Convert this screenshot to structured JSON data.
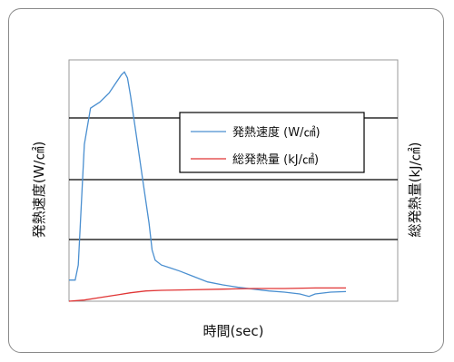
{
  "chart_data": {
    "type": "line",
    "xlabel": "時間(sec)",
    "ylabel_left": "発熱速度(W/㎠)",
    "ylabel_right": "総発熱量(kJ/㎠)",
    "legend_position": "top-right",
    "grid": "horizontal",
    "series": [
      {
        "name": "発熱速度 (W/㎠)",
        "color": "#4a8fd0",
        "points": [
          [
            0,
            0.35
          ],
          [
            2,
            0.35
          ],
          [
            3,
            0.6
          ],
          [
            5,
            2.6
          ],
          [
            7,
            3.2
          ],
          [
            10,
            3.3
          ],
          [
            13,
            3.45
          ],
          [
            15,
            3.6
          ],
          [
            17,
            3.75
          ],
          [
            18,
            3.8
          ],
          [
            19,
            3.7
          ],
          [
            20,
            3.4
          ],
          [
            22,
            2.7
          ],
          [
            24,
            2.0
          ],
          [
            26,
            1.3
          ],
          [
            27,
            0.85
          ],
          [
            28,
            0.68
          ],
          [
            30,
            0.6
          ],
          [
            33,
            0.55
          ],
          [
            36,
            0.5
          ],
          [
            40,
            0.42
          ],
          [
            45,
            0.32
          ],
          [
            50,
            0.27
          ],
          [
            55,
            0.23
          ],
          [
            60,
            0.2
          ],
          [
            65,
            0.17
          ],
          [
            70,
            0.15
          ],
          [
            75,
            0.12
          ],
          [
            78,
            0.08
          ],
          [
            80,
            0.12
          ],
          [
            85,
            0.15
          ],
          [
            90,
            0.16
          ]
        ]
      },
      {
        "name": "総発熱量 (kJ/㎠)",
        "color": "#e03535",
        "points": [
          [
            0,
            0.0
          ],
          [
            5,
            0.02
          ],
          [
            10,
            0.06
          ],
          [
            15,
            0.1
          ],
          [
            20,
            0.14
          ],
          [
            25,
            0.17
          ],
          [
            30,
            0.18
          ],
          [
            40,
            0.19
          ],
          [
            50,
            0.2
          ],
          [
            60,
            0.21
          ],
          [
            70,
            0.21
          ],
          [
            80,
            0.22
          ],
          [
            90,
            0.22
          ]
        ]
      }
    ]
  }
}
